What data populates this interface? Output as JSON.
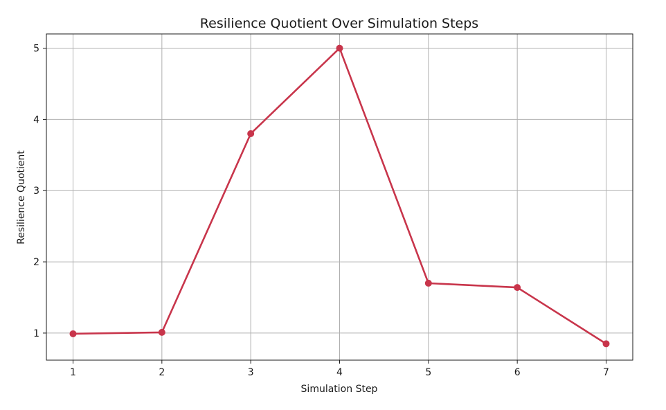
{
  "chart_data": {
    "type": "line",
    "title": "Resilience Quotient Over Simulation Steps",
    "xlabel": "Simulation Step",
    "ylabel": "Resilience Quotient",
    "x": [
      1,
      2,
      3,
      4,
      5,
      6,
      7
    ],
    "xticks": [
      "1",
      "2",
      "3",
      "4",
      "5",
      "6",
      "7"
    ],
    "yticks": [
      "1",
      "2",
      "3",
      "4",
      "5"
    ],
    "xlim": [
      0.7,
      7.3
    ],
    "ylim": [
      0.62,
      5.2
    ],
    "grid": true,
    "series": [
      {
        "values": [
          0.99,
          1.01,
          3.8,
          5.0,
          1.7,
          1.64,
          0.85
        ],
        "color": "#c8354b",
        "marker": "circle"
      }
    ]
  }
}
